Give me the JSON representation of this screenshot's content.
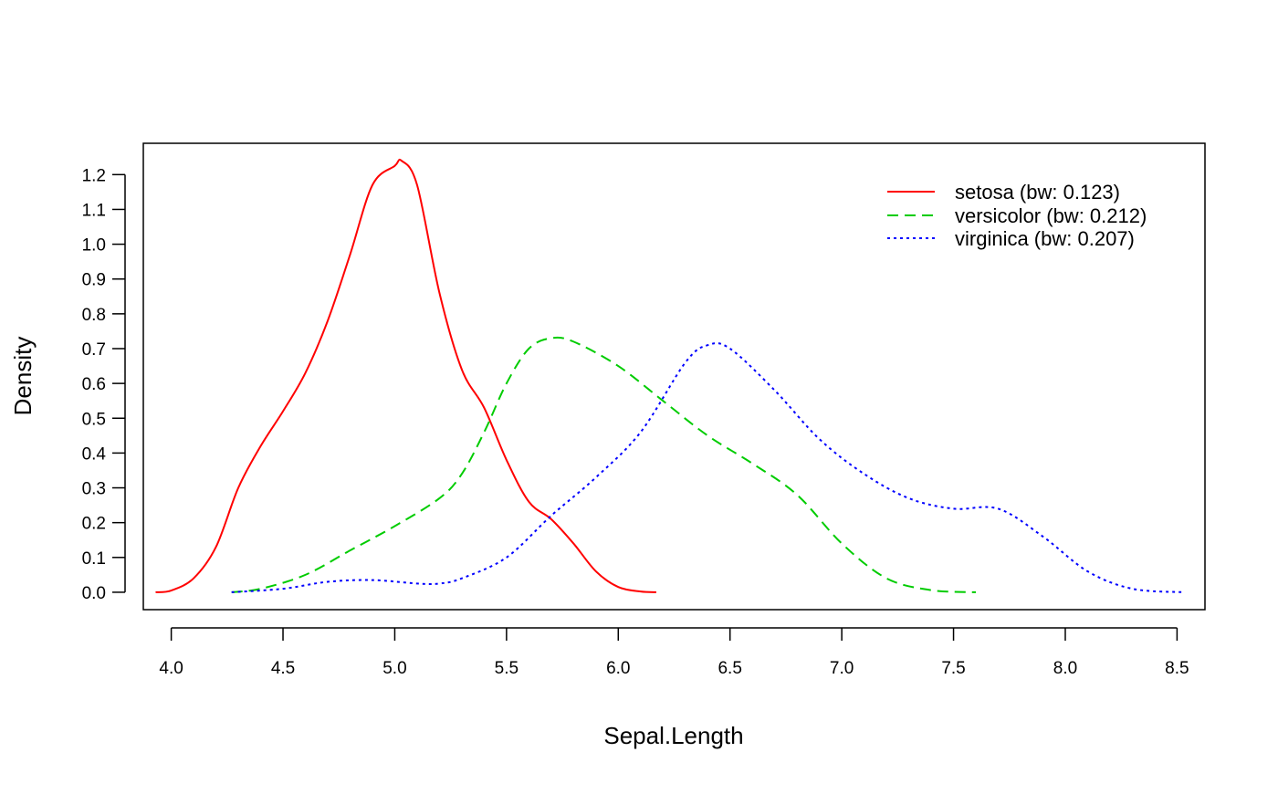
{
  "chart_data": {
    "type": "line",
    "title": "",
    "xlabel": "Sepal.Length",
    "ylabel": "Density",
    "xlim": [
      3.875,
      8.625
    ],
    "ylim": [
      -0.05,
      1.29
    ],
    "x_ticks": [
      "4.0",
      "4.5",
      "5.0",
      "5.5",
      "6.0",
      "6.5",
      "7.0",
      "7.5",
      "8.0",
      "8.5"
    ],
    "y_ticks": [
      "0.0",
      "0.1",
      "0.2",
      "0.3",
      "0.4",
      "0.5",
      "0.6",
      "0.7",
      "0.8",
      "0.9",
      "1.0",
      "1.1",
      "1.2"
    ],
    "grid": false,
    "legend_position": "top-right",
    "series": [
      {
        "name": "setosa (bw: 0.123)",
        "color": "#ff0000",
        "line_style": "solid",
        "x": [
          3.93,
          4.0,
          4.1,
          4.2,
          4.3,
          4.4,
          4.5,
          4.6,
          4.7,
          4.8,
          4.9,
          5.0,
          5.03,
          5.1,
          5.2,
          5.3,
          5.4,
          5.5,
          5.6,
          5.7,
          5.8,
          5.9,
          6.0,
          6.1,
          6.17
        ],
        "y": [
          0.0,
          0.005,
          0.04,
          0.13,
          0.3,
          0.42,
          0.52,
          0.63,
          0.78,
          0.97,
          1.17,
          1.225,
          1.24,
          1.17,
          0.86,
          0.64,
          0.53,
          0.38,
          0.26,
          0.21,
          0.14,
          0.06,
          0.015,
          0.002,
          0.0
        ]
      },
      {
        "name": "versicolor (bw: 0.212)",
        "color": "#00cc00",
        "line_style": "dashed",
        "x": [
          4.27,
          4.4,
          4.6,
          4.8,
          5.0,
          5.2,
          5.3,
          5.4,
          5.5,
          5.6,
          5.7,
          5.8,
          6.0,
          6.2,
          6.4,
          6.6,
          6.8,
          7.0,
          7.2,
          7.4,
          7.6
        ],
        "y": [
          0.0,
          0.01,
          0.05,
          0.12,
          0.19,
          0.27,
          0.34,
          0.46,
          0.6,
          0.7,
          0.73,
          0.72,
          0.65,
          0.55,
          0.45,
          0.37,
          0.28,
          0.14,
          0.04,
          0.006,
          0.0
        ]
      },
      {
        "name": "virginica (bw: 0.207)",
        "color": "#0000ff",
        "line_style": "dotted",
        "x": [
          4.27,
          4.5,
          4.7,
          4.9,
          5.1,
          5.2,
          5.3,
          5.5,
          5.7,
          5.9,
          6.1,
          6.3,
          6.4,
          6.5,
          6.7,
          6.9,
          7.1,
          7.3,
          7.5,
          7.7,
          7.9,
          8.1,
          8.3,
          8.53
        ],
        "y": [
          0.0,
          0.01,
          0.03,
          0.035,
          0.025,
          0.025,
          0.04,
          0.1,
          0.22,
          0.33,
          0.46,
          0.66,
          0.71,
          0.7,
          0.58,
          0.44,
          0.34,
          0.27,
          0.24,
          0.24,
          0.16,
          0.06,
          0.01,
          0.0
        ]
      }
    ]
  }
}
